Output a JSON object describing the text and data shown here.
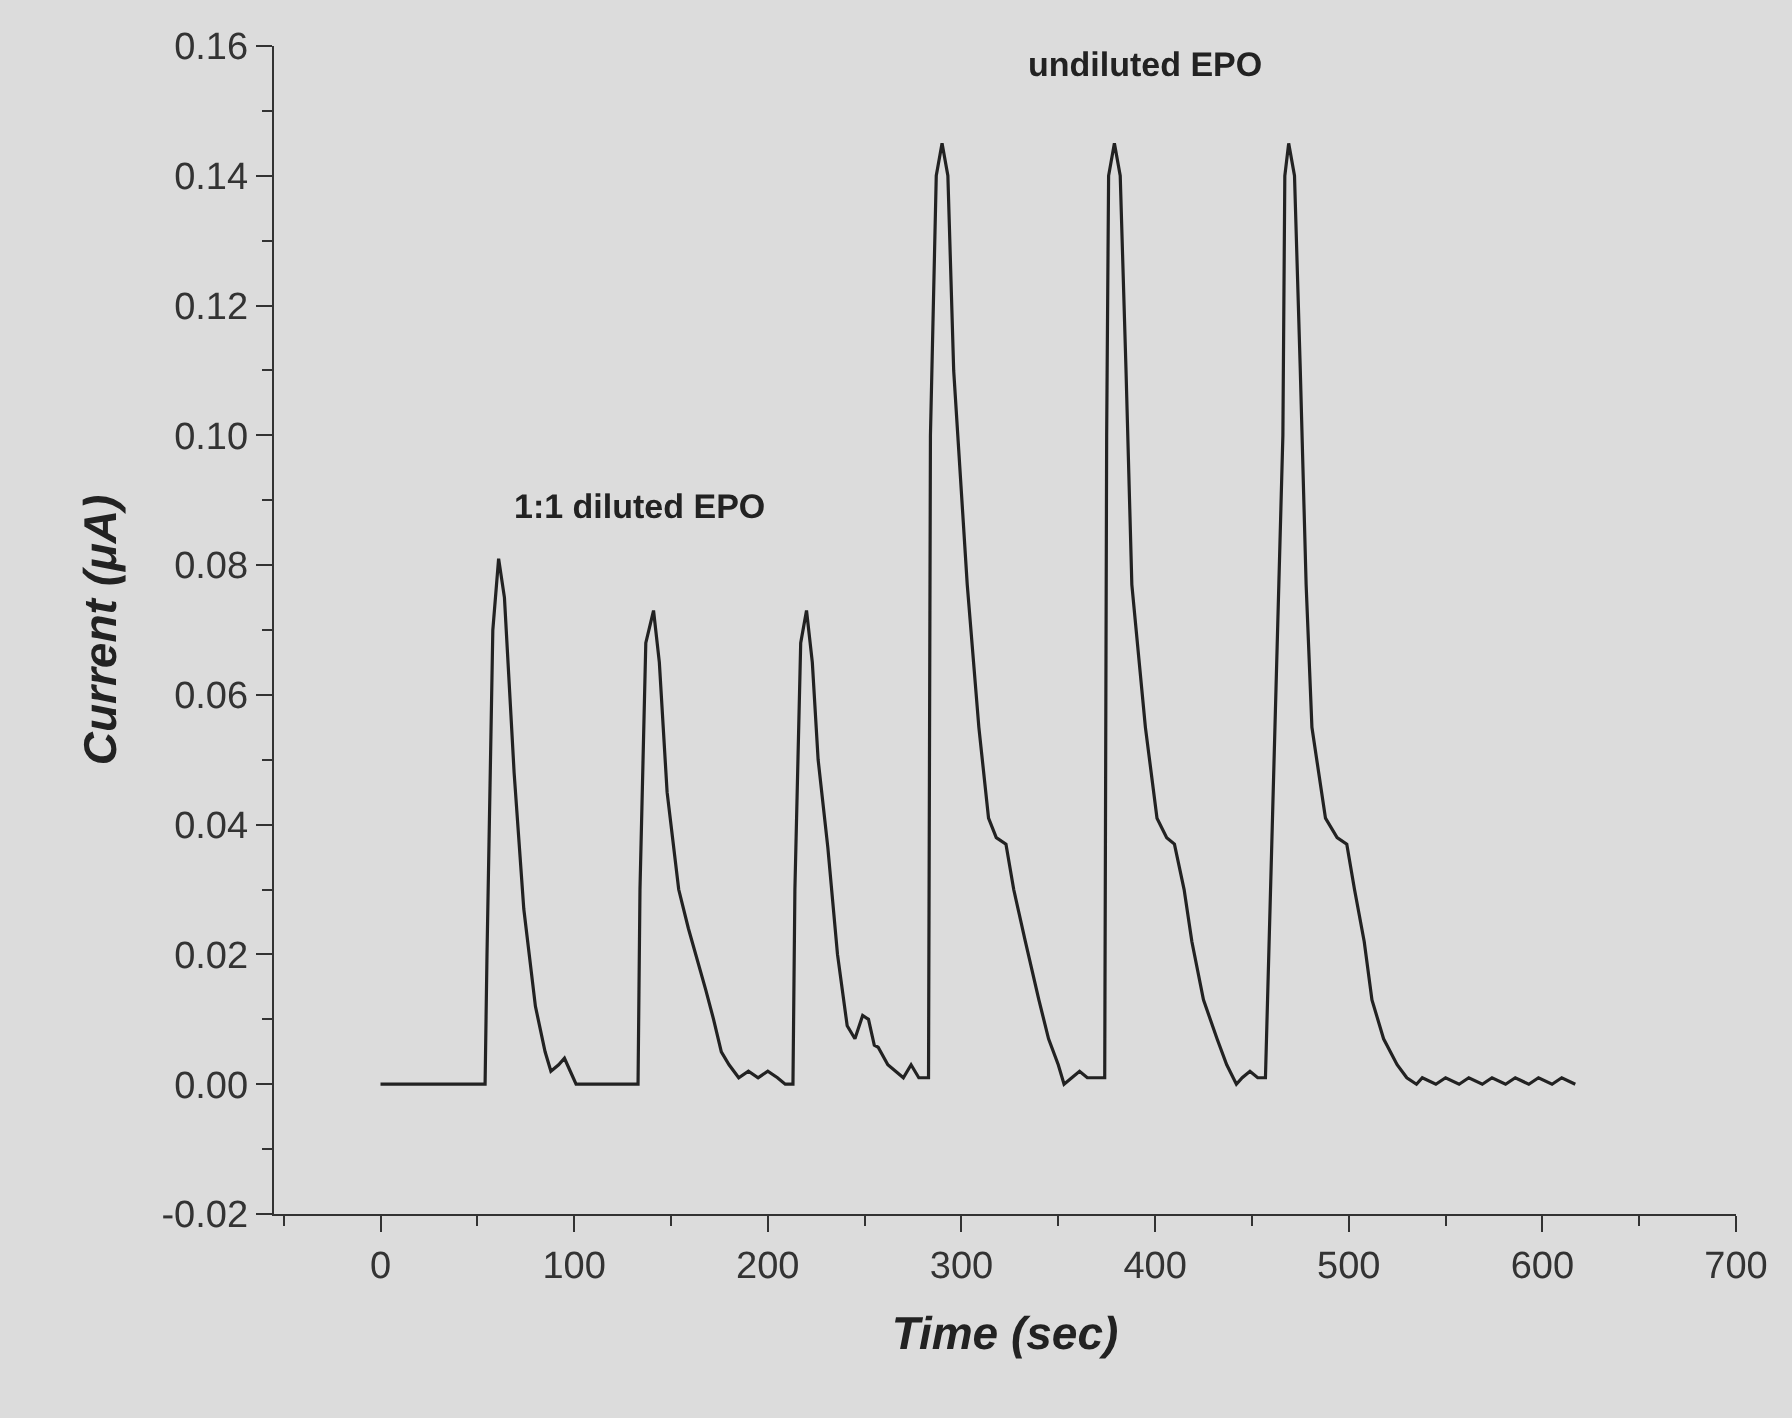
{
  "chart_data": {
    "type": "line",
    "xlabel": "Time (sec)",
    "ylabel": "Current (μA)",
    "xlim": [
      -55,
      700
    ],
    "ylim": [
      -0.02,
      0.16
    ],
    "xticks": [
      0,
      100,
      200,
      300,
      400,
      500,
      600,
      700,
      {
        "value": -50,
        "label": null
      },
      {
        "value": 50,
        "label": null
      },
      {
        "value": 150,
        "label": null
      },
      {
        "value": 250,
        "label": null
      },
      {
        "value": 350,
        "label": null
      },
      {
        "value": 450,
        "label": null
      },
      {
        "value": 550,
        "label": null
      },
      {
        "value": 650,
        "label": null
      }
    ],
    "yticks": [
      -0.02,
      {
        "value": 0,
        "label": "0.00"
      },
      0.02,
      0.04,
      0.06,
      0.08,
      {
        "value": 0.1,
        "label": "0.10"
      },
      0.12,
      0.14,
      0.16,
      {
        "value": -0.01,
        "label": null
      },
      {
        "value": 0.01,
        "label": null
      },
      {
        "value": 0.03,
        "label": null
      },
      {
        "value": 0.05,
        "label": null
      },
      {
        "value": 0.07,
        "label": null
      },
      {
        "value": 0.09,
        "label": null
      },
      {
        "value": 0.11,
        "label": null
      },
      {
        "value": 0.13,
        "label": null
      },
      {
        "value": 0.15,
        "label": null
      }
    ],
    "grid": false,
    "marker": "none",
    "line_style": "solid",
    "annotations": [
      "1:1 diluted EPO",
      "undiluted EPO"
    ],
    "series": [
      {
        "color": "#222222",
        "x": [
          0,
          54,
          55,
          58,
          61,
          64,
          69,
          74,
          80,
          85,
          88,
          92,
          95,
          98,
          101,
          104,
          133,
          134,
          137,
          141,
          144,
          148,
          154,
          159,
          168,
          172,
          176,
          180,
          185,
          190,
          195,
          200,
          205,
          209,
          213,
          214,
          217,
          220,
          223,
          226,
          231,
          236,
          241,
          245,
          249,
          252,
          255,
          257,
          262,
          266,
          270,
          274,
          278,
          282,
          283,
          284,
          287,
          290,
          293,
          296,
          303,
          309,
          314,
          318,
          323,
          327,
          333,
          340,
          345,
          350,
          353,
          357,
          361,
          365,
          374,
          375,
          376,
          379,
          382,
          385,
          388,
          395,
          401,
          406,
          410,
          415,
          419,
          425,
          432,
          437,
          442,
          445,
          449,
          453,
          457,
          466,
          467,
          469,
          472,
          475,
          478,
          481,
          488,
          494,
          499,
          503,
          508,
          512,
          518,
          525,
          530,
          535,
          538,
          545,
          550,
          557,
          562,
          569,
          574,
          581,
          586,
          593,
          598,
          605,
          610,
          617
        ],
        "values": [
          0,
          0,
          0.02,
          0.07,
          0.081,
          0.075,
          0.048,
          0.027,
          0.012,
          0.005,
          0.002,
          0.003,
          0.004,
          0.002,
          0,
          0,
          0,
          0.03,
          0.068,
          0.073,
          0.065,
          0.045,
          0.03,
          0.024,
          0.0145,
          0.01,
          0.005,
          0.003,
          0.001,
          0.002,
          0.001,
          0.002,
          0.001,
          0,
          0,
          0.03,
          0.068,
          0.073,
          0.065,
          0.05,
          0.0365,
          0.02,
          0.009,
          0.007,
          0.0106,
          0.01,
          0.006,
          0.0057,
          0.003,
          0.002,
          0.001,
          0.003,
          0.001,
          0.001,
          0.001,
          0.1,
          0.14,
          0.145,
          0.14,
          0.11,
          0.077,
          0.055,
          0.041,
          0.038,
          0.037,
          0.03,
          0.022,
          0.013,
          0.007,
          0.003,
          0,
          0.001,
          0.002,
          0.001,
          0.001,
          0.1,
          0.14,
          0.145,
          0.14,
          0.11,
          0.077,
          0.055,
          0.041,
          0.038,
          0.037,
          0.03,
          0.022,
          0.013,
          0.007,
          0.003,
          0,
          0.001,
          0.002,
          0.001,
          0.001,
          0.1,
          0.14,
          0.145,
          0.14,
          0.11,
          0.077,
          0.055,
          0.041,
          0.038,
          0.037,
          0.03,
          0.022,
          0.013,
          0.007,
          0.003,
          0.001,
          0,
          0.001,
          0,
          0.001,
          0,
          0.001,
          0,
          0.001,
          0,
          0.001,
          0,
          0.001,
          0,
          0.001,
          0
        ]
      }
    ]
  }
}
